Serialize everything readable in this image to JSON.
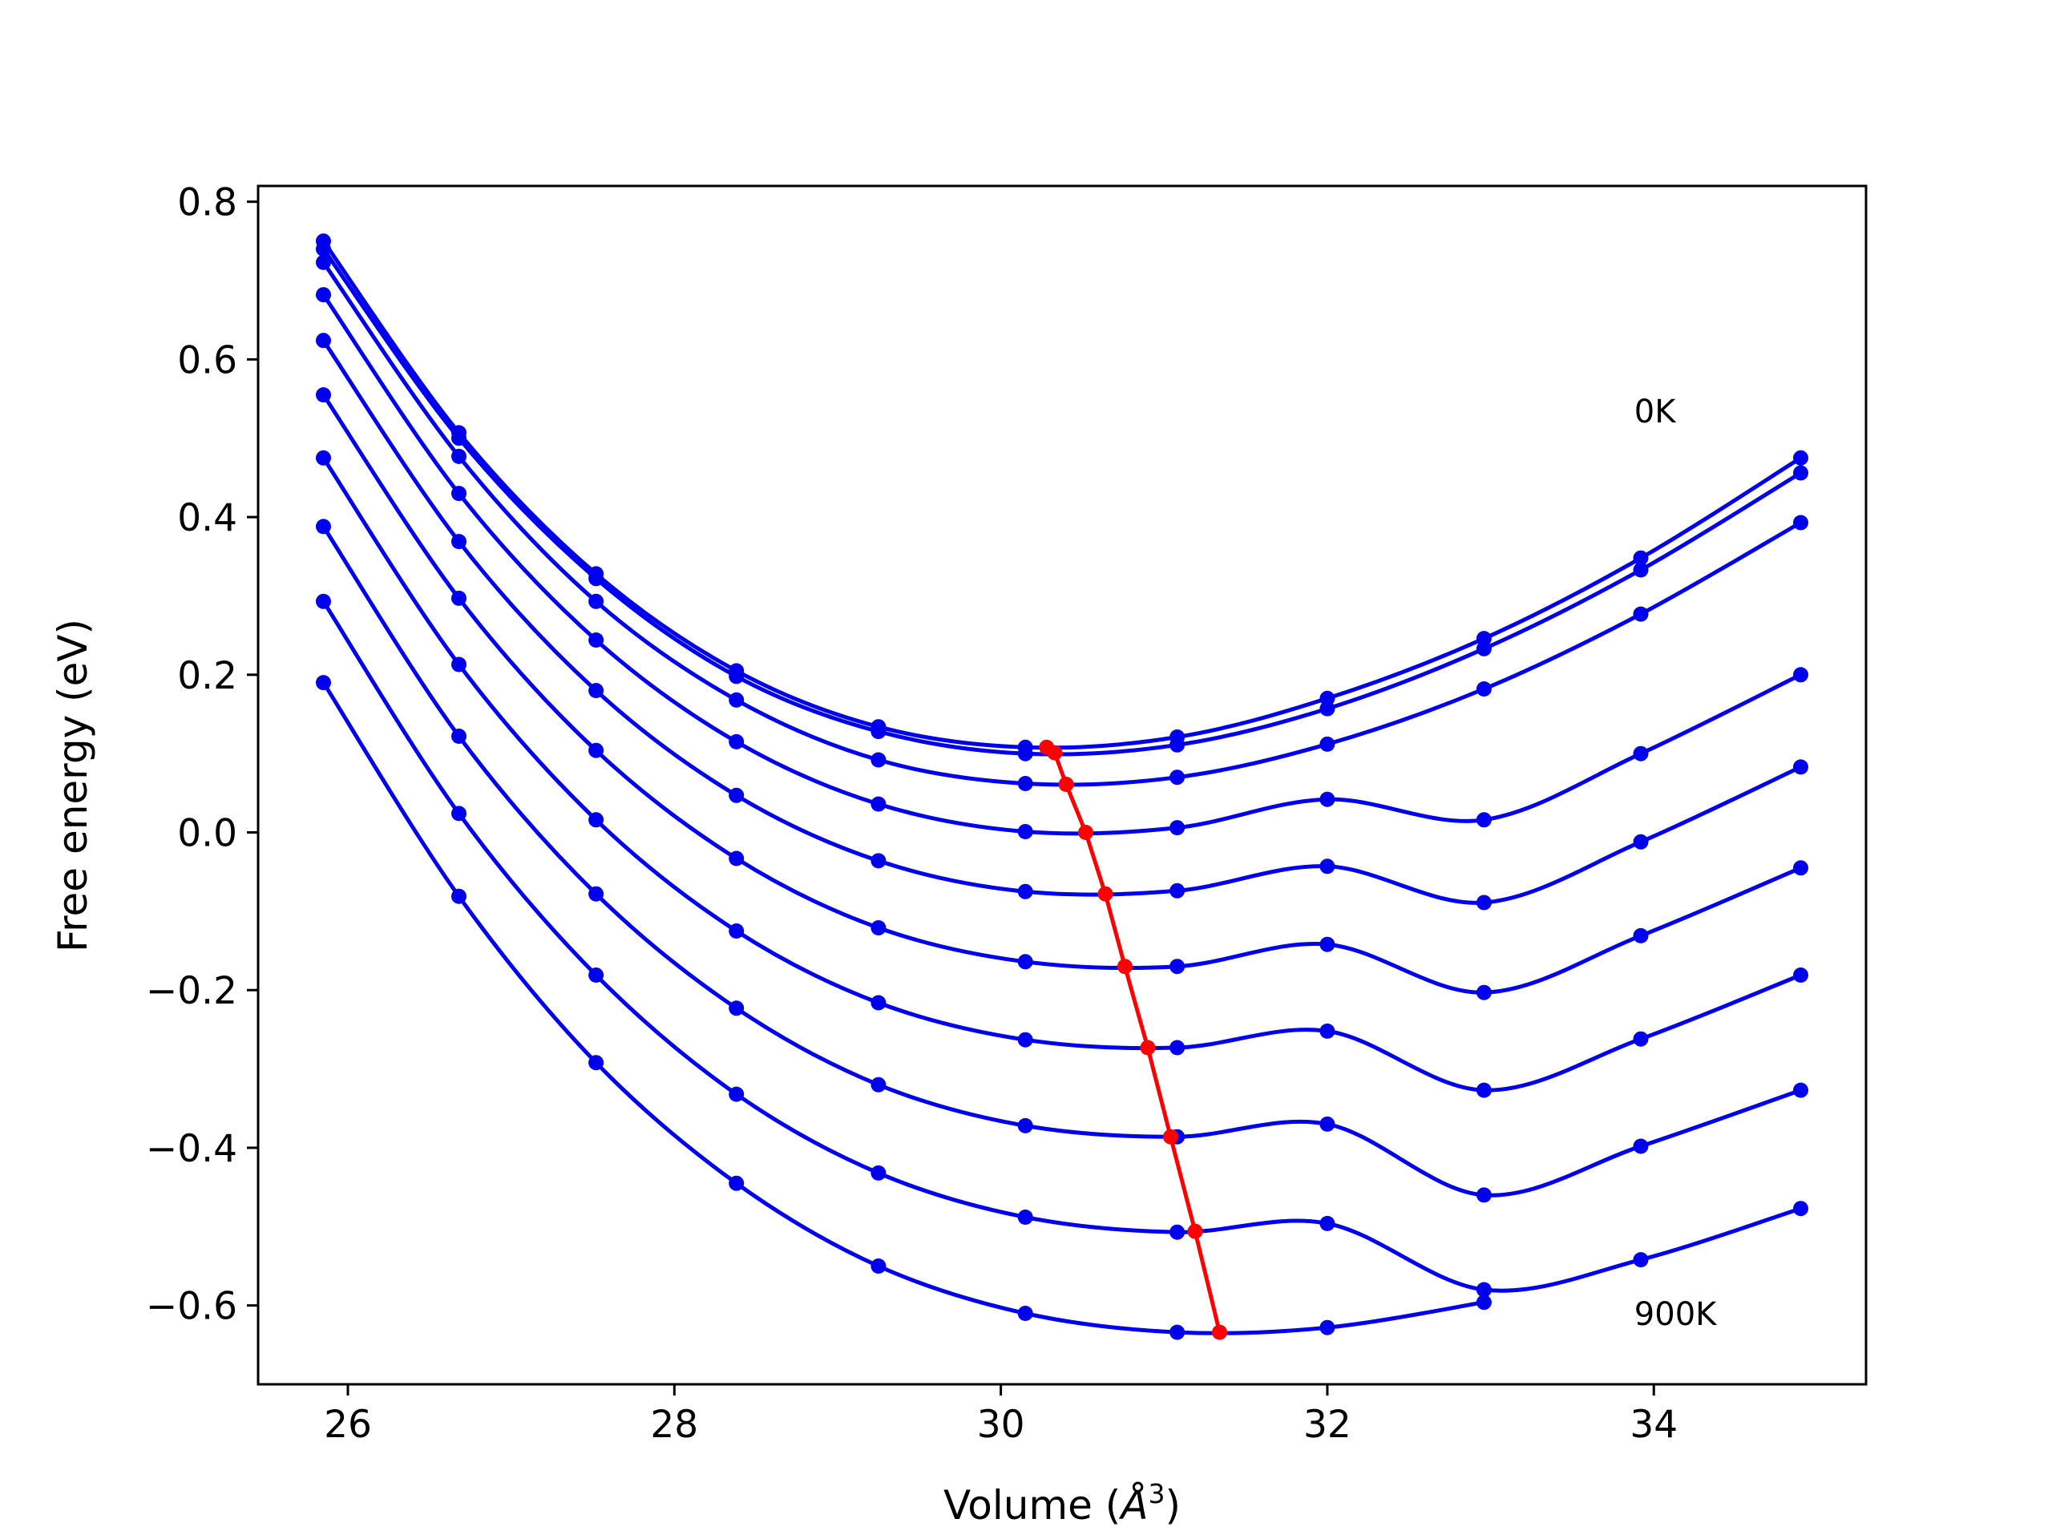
{
  "chart_data": {
    "type": "line",
    "xlabel": "Volume (",
    "xlabel_symbol": "Å",
    "xlabel_sup": "3",
    "xlabel_end": ")",
    "ylabel": "Free energy (eV)",
    "xlim": [
      25.45,
      35.3
    ],
    "ylim": [
      -0.7,
      0.82
    ],
    "xticks": [
      26,
      28,
      30,
      32,
      34
    ],
    "xtick_labels": [
      "26",
      "28",
      "30",
      "32",
      "34"
    ],
    "yticks": [
      0.8,
      0.6,
      0.4,
      0.2,
      0.0,
      -0.2,
      -0.4,
      -0.6
    ],
    "ytick_labels": [
      "0.8",
      "0.6",
      "0.4",
      "0.2",
      "0.0",
      "−0.2",
      "−0.4",
      "−0.6"
    ],
    "grid": false,
    "series_color": "#0000ee",
    "min_line_color": "#ff0000",
    "x": [
      25.85,
      26.68,
      27.52,
      28.38,
      29.25,
      30.15,
      31.08,
      32.0,
      32.96,
      33.92,
      34.9
    ],
    "series": [
      {
        "values": [
          0.75,
          0.507,
          0.328,
          0.205,
          0.134,
          0.108,
          0.121,
          0.17,
          0.246,
          0.348,
          0.475
        ]
      },
      {
        "values": [
          0.74,
          0.5,
          0.322,
          0.198,
          0.128,
          0.1,
          0.111,
          0.157,
          0.233,
          0.333,
          0.456
        ]
      },
      {
        "values": [
          0.723,
          0.477,
          0.293,
          0.168,
          0.092,
          0.062,
          0.07,
          0.112,
          0.182,
          0.277,
          0.393
        ]
      },
      {
        "values": [
          0.682,
          0.43,
          0.244,
          0.115,
          0.036,
          0.001,
          0.006,
          0.042,
          0.016,
          0.1,
          0.2
        ]
      },
      {
        "values": [
          0.624,
          0.369,
          0.18,
          0.047,
          -0.036,
          -0.075,
          -0.074,
          -0.043,
          -0.089,
          -0.012,
          0.083
        ]
      },
      {
        "values": [
          0.555,
          0.297,
          0.104,
          -0.033,
          -0.121,
          -0.164,
          -0.17,
          -0.142,
          -0.203,
          -0.131,
          -0.045
        ]
      },
      {
        "values": [
          0.475,
          0.213,
          0.016,
          -0.125,
          -0.216,
          -0.263,
          -0.273,
          -0.252,
          -0.327,
          -0.262,
          -0.181
        ]
      },
      {
        "values": [
          0.388,
          0.122,
          -0.078,
          -0.223,
          -0.32,
          -0.372,
          -0.386,
          -0.37,
          -0.46,
          -0.398,
          -0.327
        ]
      },
      {
        "values": [
          0.293,
          0.024,
          -0.181,
          -0.332,
          -0.432,
          -0.488,
          -0.507,
          -0.496,
          -0.58,
          -0.542,
          -0.477
        ]
      },
      {
        "values": [
          0.19,
          -0.081,
          -0.292,
          -0.445,
          -0.55,
          -0.61,
          -0.634,
          -0.628,
          -0.596,
          null,
          null
        ]
      }
    ],
    "minima": {
      "x": [
        30.28,
        30.33,
        30.4,
        30.52,
        30.64,
        30.76,
        30.9,
        31.04,
        31.19,
        31.34
      ],
      "y": [
        0.108,
        0.101,
        0.061,
        0.0,
        -0.078,
        -0.17,
        -0.273,
        -0.386,
        -0.506,
        -0.634
      ]
    },
    "annotations": [
      {
        "text": "0K",
        "x": 33.88,
        "y": 0.52
      },
      {
        "text": "900K",
        "x": 33.88,
        "y": -0.625
      }
    ]
  }
}
